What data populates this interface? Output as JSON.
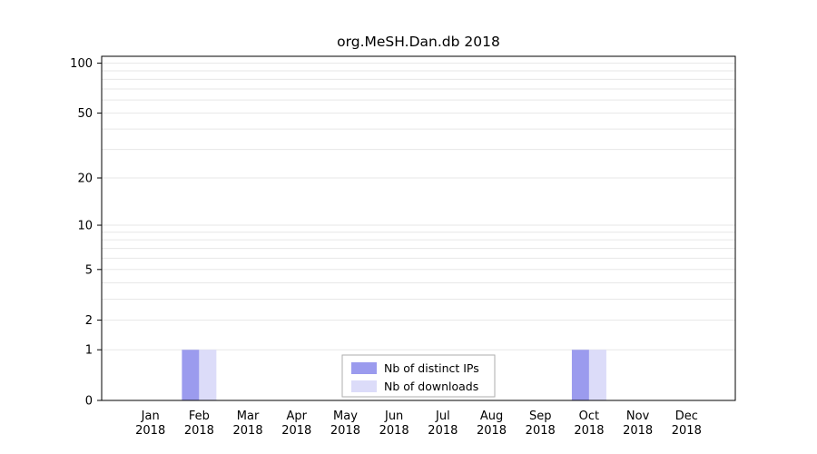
{
  "chart_data": {
    "type": "bar",
    "title": "org.MeSH.Dan.db 2018",
    "categories": [
      "Jan",
      "Feb",
      "Mar",
      "Apr",
      "May",
      "Jun",
      "Jul",
      "Aug",
      "Sep",
      "Oct",
      "Nov",
      "Dec"
    ],
    "year_label": "2018",
    "series": [
      {
        "name": "Nb of distinct IPs",
        "color": "#9b9bee",
        "values": [
          0,
          1,
          0,
          0,
          0,
          0,
          0,
          0,
          0,
          1,
          0,
          0
        ]
      },
      {
        "name": "Nb of downloads",
        "color": "#dcdcf9",
        "values": [
          0,
          1,
          0,
          0,
          0,
          0,
          0,
          0,
          0,
          1,
          0,
          0
        ]
      }
    ],
    "yscale": "log10(value+1)",
    "yticks": [
      0,
      1,
      2,
      5,
      10,
      20,
      50,
      100
    ],
    "grid_values": [
      1,
      2,
      3,
      4,
      5,
      6,
      7,
      8,
      9,
      10,
      20,
      30,
      40,
      50,
      60,
      70,
      80,
      90,
      100
    ],
    "ylim": [
      0,
      110
    ],
    "grid_on": true,
    "legend_position": "bottom-center",
    "colors": {
      "grid": "#e7e7e7",
      "axis": "#000000",
      "legend_border": "#aeaeae",
      "background": "#ffffff"
    }
  }
}
